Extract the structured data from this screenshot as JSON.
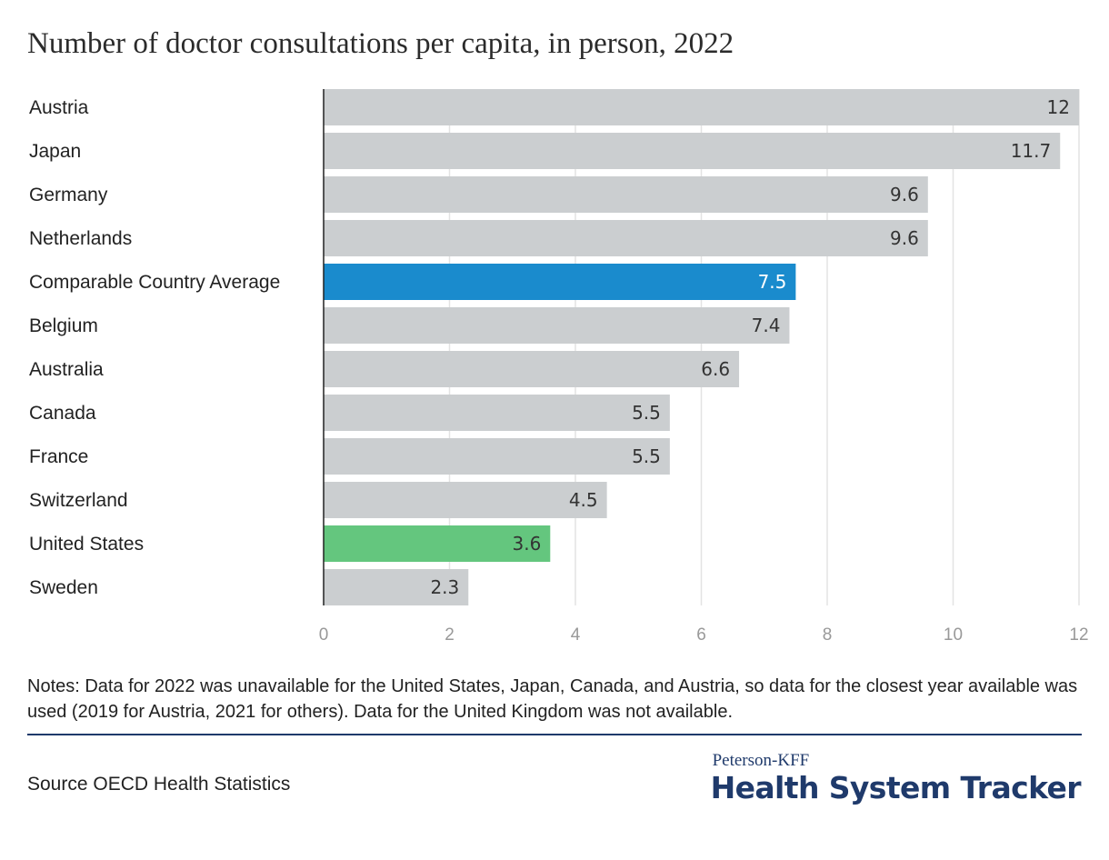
{
  "title": "Number of doctor consultations per capita, in person, 2022",
  "colors": {
    "default": "#cbced0",
    "average": "#1a8bcd",
    "us": "#64c67e",
    "grid": "#e3e3e3",
    "axis": "#222222",
    "tick": "#999999"
  },
  "chart_data": {
    "type": "bar",
    "orientation": "horizontal",
    "title": "Number of doctor consultations per capita, in person, 2022",
    "categories": [
      "Austria",
      "Japan",
      "Germany",
      "Netherlands",
      "Comparable Country Average",
      "Belgium",
      "Australia",
      "Canada",
      "France",
      "Switzerland",
      "United States",
      "Sweden"
    ],
    "values": [
      12,
      11.7,
      9.6,
      9.6,
      7.5,
      7.4,
      6.6,
      5.5,
      5.5,
      4.5,
      3.6,
      2.3
    ],
    "value_labels": [
      "12",
      "11.7",
      "9.6",
      "9.6",
      "7.5",
      "7.4",
      "6.6",
      "5.5",
      "5.5",
      "4.5",
      "3.6",
      "2.3"
    ],
    "highlight": {
      "Comparable Country Average": "average",
      "United States": "us"
    },
    "xlim": [
      0,
      12
    ],
    "xticks": [
      0,
      2,
      4,
      6,
      8,
      10,
      12
    ],
    "grid": true,
    "legend": "none"
  },
  "notes": "Notes: Data for 2022 was unavailable for the United States, Japan, Canada, and Austria, so data for the closest year available was used (2019 for Austria, 2021 for others). Data for the United Kingdom was not available.",
  "source": "Source OECD Health Statistics",
  "brand": {
    "small": "Peterson-KFF",
    "big": "Health System Tracker"
  }
}
